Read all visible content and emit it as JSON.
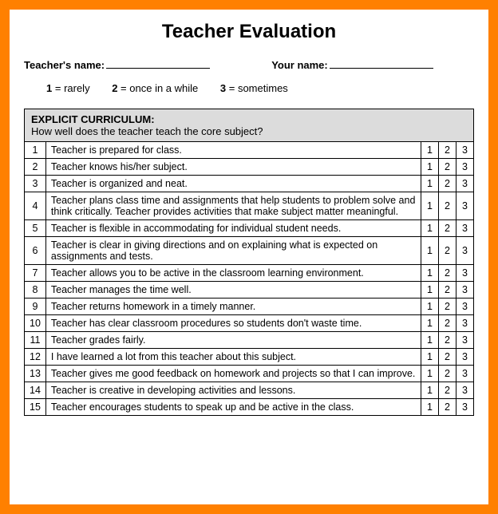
{
  "title": "Teacher Evaluation",
  "labels": {
    "teacher_name": "Teacher's name:",
    "your_name": "Your name:"
  },
  "scale": [
    {
      "key": "1",
      "label": "rarely"
    },
    {
      "key": "2",
      "label": "once in a while"
    },
    {
      "key": "3",
      "label": "sometimes"
    }
  ],
  "section": {
    "title": "EXPLICIT CURRICULUM:",
    "subtitle": "How well does the teacher teach the core subject?"
  },
  "ratings": [
    "1",
    "2",
    "3"
  ],
  "rows": [
    {
      "n": "1",
      "text": "Teacher is prepared for class."
    },
    {
      "n": "2",
      "text": "Teacher knows his/her subject."
    },
    {
      "n": "3",
      "text": "Teacher is organized and neat."
    },
    {
      "n": "4",
      "text": "Teacher plans class time and assignments that help students to problem solve and think critically. Teacher provides activities that make subject matter meaningful."
    },
    {
      "n": "5",
      "text": "Teacher is flexible in accommodating for individual student needs."
    },
    {
      "n": "6",
      "text": "Teacher is clear in giving directions and on explaining what is expected on assignments and tests."
    },
    {
      "n": "7",
      "text": "Teacher allows you to be active in the classroom learning environment."
    },
    {
      "n": "8",
      "text": "Teacher manages the time well."
    },
    {
      "n": "9",
      "text": "Teacher returns homework in a timely manner."
    },
    {
      "n": "10",
      "text": "Teacher has clear classroom procedures so students don't waste time."
    },
    {
      "n": "11",
      "text": "Teacher grades fairly."
    },
    {
      "n": "12",
      "text": "I have learned a lot from this teacher about this subject."
    },
    {
      "n": "13",
      "text": "Teacher gives me good feedback on homework and projects so that I can improve."
    },
    {
      "n": "14",
      "text": "Teacher is creative in developing activities and lessons."
    },
    {
      "n": "15",
      "text": "Teacher encourages students to speak up and be active in the class."
    }
  ],
  "colors": {
    "border_outer": "#ff8000",
    "page_bg": "#ffffff",
    "section_bg": "#dcdcdc",
    "text": "#000000"
  }
}
